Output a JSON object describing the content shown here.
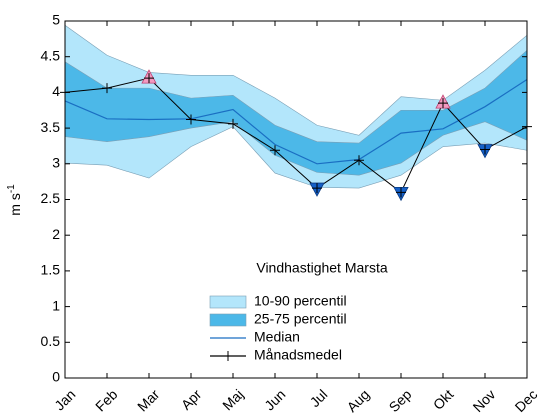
{
  "chart_data": {
    "type": "band-line",
    "annotation": "Vindhastighet Marsta",
    "ylabel": "m s",
    "ylabel_sup": "-1",
    "categories": [
      "Jan",
      "Feb",
      "Mar",
      "Apr",
      "Maj",
      "Jun",
      "Jul",
      "Aug",
      "Sep",
      "Okt",
      "Nov",
      "Dec"
    ],
    "ylim": [
      0,
      5
    ],
    "yticks": [
      0,
      0.5,
      1,
      1.5,
      2,
      2.5,
      3,
      3.5,
      4,
      4.5,
      5
    ],
    "series": [
      {
        "name": "10-90 percentil",
        "kind": "band",
        "color": "#b3e6fb",
        "upper": [
          4.94,
          4.52,
          4.28,
          4.24,
          4.24,
          3.92,
          3.54,
          3.4,
          3.94,
          3.89,
          4.31,
          4.8
        ],
        "lower": [
          3.01,
          2.98,
          2.8,
          3.24,
          3.52,
          2.87,
          2.67,
          2.66,
          2.84,
          3.24,
          3.29,
          3.19
        ]
      },
      {
        "name": "25-75 percentil",
        "kind": "band",
        "color": "#4cb8e8",
        "upper": [
          4.43,
          4.06,
          4.06,
          3.92,
          3.96,
          3.54,
          3.31,
          3.29,
          3.75,
          3.75,
          4.06,
          4.59
        ],
        "lower": [
          3.38,
          3.31,
          3.38,
          3.5,
          3.59,
          3.12,
          2.88,
          2.84,
          3.01,
          3.4,
          3.59,
          3.33
        ]
      },
      {
        "name": "Median",
        "kind": "line",
        "color": "#1a6ec2",
        "values": [
          3.88,
          3.63,
          3.62,
          3.63,
          3.76,
          3.27,
          3.0,
          3.06,
          3.43,
          3.49,
          3.8,
          4.18
        ]
      },
      {
        "name": "Månadsmedel",
        "kind": "marker-line",
        "color": "#000000",
        "values": [
          4.0,
          4.06,
          4.2,
          3.62,
          3.56,
          3.19,
          2.66,
          3.05,
          2.6,
          3.85,
          3.2,
          3.52
        ]
      }
    ],
    "high_months": [
      2,
      9
    ],
    "high_color": "#f49ac1",
    "low_months": [
      6,
      8,
      10
    ],
    "low_color": "#1560c8"
  }
}
